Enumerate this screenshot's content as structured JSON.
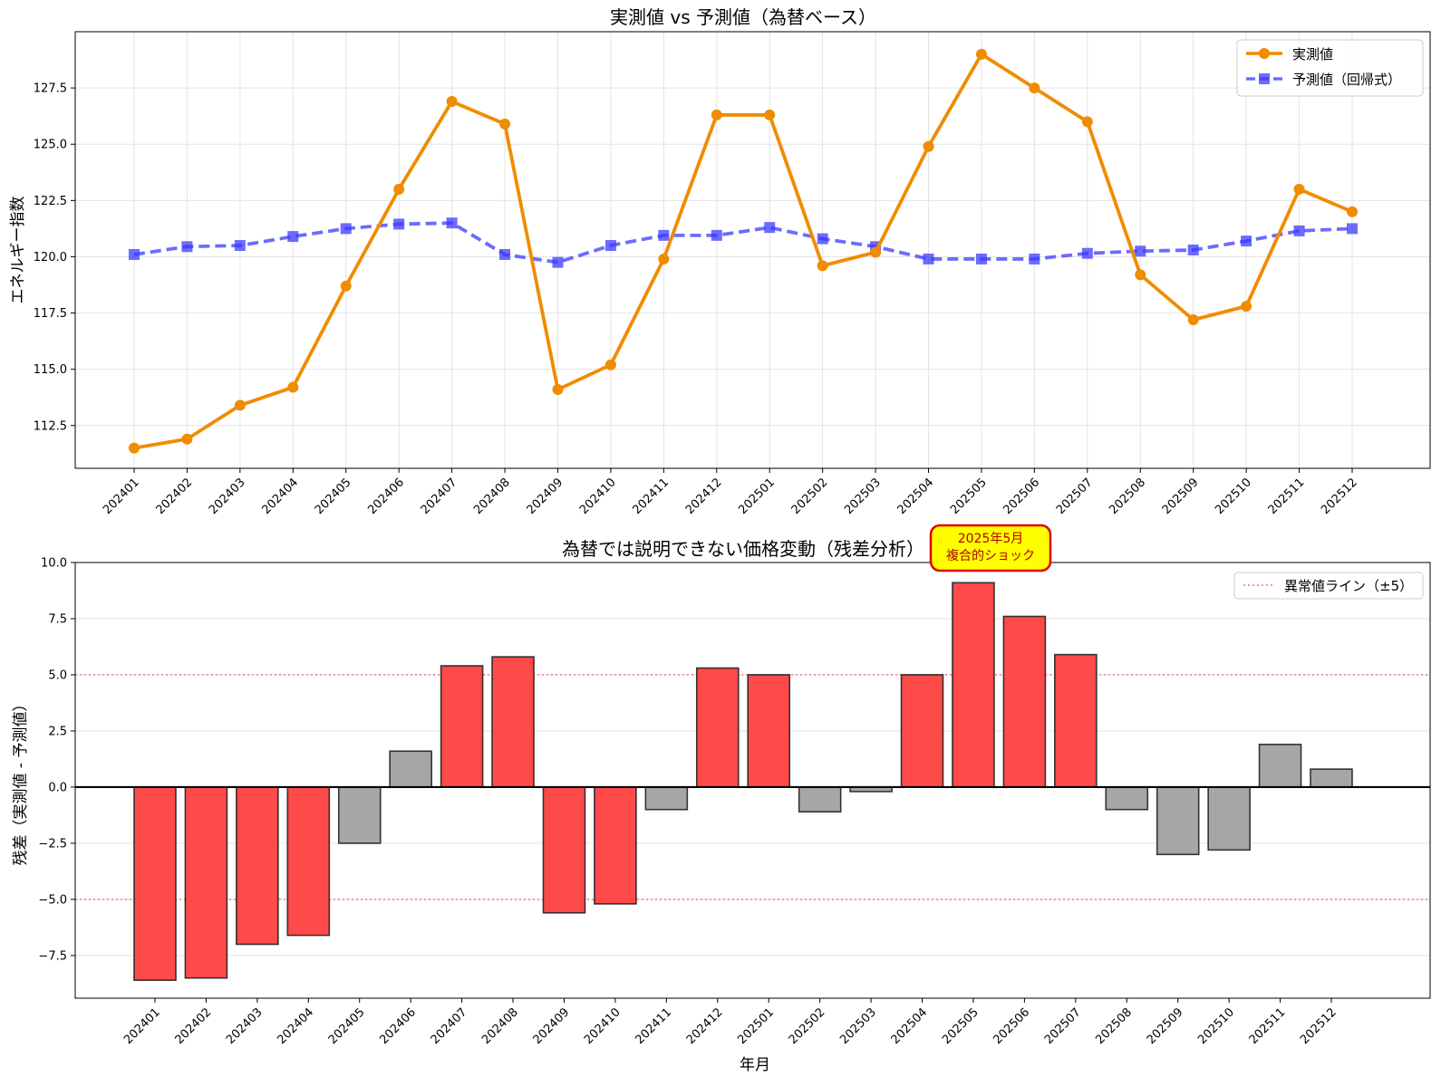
{
  "chart_data": [
    {
      "type": "line",
      "title": "実測値 vs 予測値（為替ベース）",
      "xlabel": "",
      "ylabel": "エネルギー指数",
      "categories": [
        "202401",
        "202402",
        "202403",
        "202404",
        "202405",
        "202406",
        "202407",
        "202408",
        "202409",
        "202410",
        "202411",
        "202412",
        "202501",
        "202502",
        "202503",
        "202504",
        "202505",
        "202506",
        "202507",
        "202508",
        "202509",
        "202510",
        "202511",
        "202512"
      ],
      "ylim": [
        110.6,
        130.0
      ],
      "yticks": [
        112.5,
        115.0,
        117.5,
        120.0,
        122.5,
        125.0,
        127.5
      ],
      "ytick_labels": [
        "112.5",
        "115.0",
        "117.5",
        "120.0",
        "122.5",
        "125.0",
        "127.5"
      ],
      "grid": true,
      "legend_position": "top-right",
      "series": [
        {
          "name": "実測値",
          "color": "#f08c00",
          "style": "solid",
          "marker": "circle",
          "values": [
            111.5,
            111.9,
            113.4,
            114.2,
            118.7,
            123.0,
            126.9,
            125.9,
            114.1,
            115.2,
            119.9,
            126.3,
            126.3,
            119.6,
            120.2,
            124.9,
            129.0,
            127.5,
            126.0,
            119.2,
            117.2,
            117.8,
            123.0,
            122.0
          ]
        },
        {
          "name": "予測値（回帰式）",
          "color": "#3b3bff",
          "style": "dashed",
          "marker": "square",
          "values": [
            120.1,
            120.45,
            120.5,
            120.9,
            121.25,
            121.45,
            121.5,
            120.1,
            119.75,
            120.5,
            120.95,
            120.95,
            121.3,
            120.8,
            120.45,
            119.9,
            119.9,
            119.9,
            120.15,
            120.25,
            120.3,
            120.7,
            121.15,
            121.25
          ]
        }
      ]
    },
    {
      "type": "bar",
      "title": "為替では説明できない価格変動（残差分析）",
      "xlabel": "年月",
      "ylabel": "残差（実測値 - 予測値）",
      "categories": [
        "202401",
        "202402",
        "202403",
        "202404",
        "202405",
        "202406",
        "202407",
        "202408",
        "202409",
        "202410",
        "202411",
        "202412",
        "202501",
        "202502",
        "202503",
        "202504",
        "202505",
        "202506",
        "202507",
        "202508",
        "202509",
        "202510",
        "202511",
        "202512"
      ],
      "values": [
        -8.6,
        -8.5,
        -7.0,
        -6.6,
        -2.5,
        1.6,
        5.4,
        5.8,
        -5.6,
        -5.2,
        -1.0,
        5.3,
        5.0,
        -1.1,
        -0.2,
        5.0,
        9.1,
        7.6,
        5.9,
        -1.0,
        -3.0,
        -2.8,
        1.9,
        0.8
      ],
      "ylim": [
        -9.4,
        10.0
      ],
      "yticks": [
        -7.5,
        -5.0,
        -2.5,
        0.0,
        2.5,
        5.0,
        7.5,
        10.0
      ],
      "ytick_labels": [
        "−7.5",
        "−5.0",
        "−2.5",
        "0.0",
        "2.5",
        "5.0",
        "7.5",
        "10.0"
      ],
      "grid": true,
      "threshold": 5,
      "threshold_legend": "異常値ライン（±5）",
      "legend_position": "top-right",
      "colors": {
        "anomaly": "#ff4a4a",
        "normal": "#a6a6a6",
        "threshold_line": "#ff6b6b"
      },
      "annotation": {
        "category": "202505",
        "lines": [
          "2025年5月",
          "複合的ショック"
        ],
        "fill": "#ffff00",
        "border": "#e00000"
      }
    }
  ]
}
